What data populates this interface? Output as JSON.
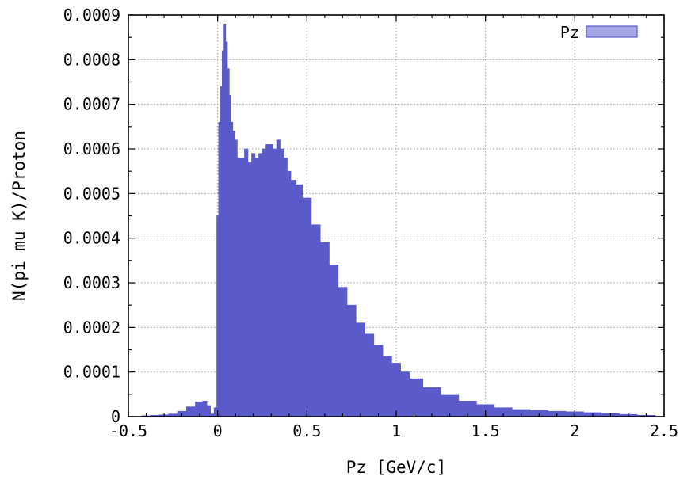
{
  "chart_data": {
    "type": "bar",
    "title": "",
    "xlabel": "Pz [GeV/c]",
    "ylabel": "N(pi mu K)/Proton",
    "xlim": [
      -0.5,
      2.5
    ],
    "ylim": [
      0,
      0.0009
    ],
    "grid": true,
    "legend_position": "top-right",
    "x_ticks": [
      -0.5,
      0,
      0.5,
      1,
      1.5,
      2,
      2.5
    ],
    "x_tick_labels": [
      "-0.5",
      "0",
      "0.5",
      "1",
      "1.5",
      "2",
      "2.5"
    ],
    "y_ticks": [
      0,
      0.0001,
      0.0002,
      0.0003,
      0.0004,
      0.0005,
      0.0006,
      0.0007,
      0.0008,
      0.0009
    ],
    "y_tick_labels": [
      "0",
      "0.0001",
      "0.0002",
      "0.0003",
      "0.0004",
      "0.0005",
      "0.0006",
      "0.0007",
      "0.0008",
      "0.0009"
    ],
    "series": [
      {
        "name": "Pz",
        "color": "#5a5acb",
        "x": [
          -0.4,
          -0.35,
          -0.3,
          -0.25,
          -0.2,
          -0.15,
          -0.1,
          -0.07,
          -0.05,
          -0.03,
          -0.01,
          0.0,
          0.01,
          0.02,
          0.03,
          0.04,
          0.05,
          0.06,
          0.07,
          0.08,
          0.09,
          0.1,
          0.12,
          0.14,
          0.16,
          0.18,
          0.2,
          0.22,
          0.24,
          0.26,
          0.28,
          0.3,
          0.32,
          0.34,
          0.36,
          0.38,
          0.4,
          0.42,
          0.45,
          0.5,
          0.55,
          0.6,
          0.65,
          0.7,
          0.75,
          0.8,
          0.85,
          0.9,
          0.95,
          1.0,
          1.05,
          1.1,
          1.2,
          1.3,
          1.4,
          1.5,
          1.6,
          1.7,
          1.8,
          1.9,
          2.0,
          2.1,
          2.2,
          2.3,
          2.4
        ],
        "values": [
          2e-06,
          3e-06,
          4e-06,
          6e-06,
          1.2e-05,
          2.2e-05,
          3.3e-05,
          3.5e-05,
          2.5e-05,
          6e-06,
          2e-05,
          0.00045,
          0.00066,
          0.00074,
          0.00082,
          0.00088,
          0.00084,
          0.00078,
          0.00072,
          0.00066,
          0.00064,
          0.00062,
          0.00058,
          0.00058,
          0.0006,
          0.00057,
          0.00059,
          0.00058,
          0.00059,
          0.0006,
          0.00061,
          0.00061,
          0.0006,
          0.00062,
          0.0006,
          0.00058,
          0.00055,
          0.00053,
          0.00052,
          0.00049,
          0.00043,
          0.00039,
          0.00034,
          0.00029,
          0.00025,
          0.00021,
          0.000185,
          0.00016,
          0.000135,
          0.00012,
          0.0001,
          8.5e-05,
          6.5e-05,
          4.8e-05,
          3.5e-05,
          2.7e-05,
          2e-05,
          1.6e-05,
          1.4e-05,
          1.2e-05,
          1.1e-05,
          9e-06,
          7e-06,
          5e-06,
          3e-06
        ]
      }
    ]
  }
}
